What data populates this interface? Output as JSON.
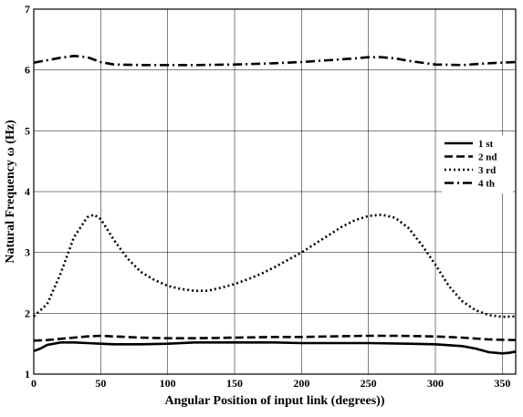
{
  "chart_data": {
    "type": "line",
    "title": "",
    "xlabel": "Angular Position of input link   (degrees))",
    "ylabel": "Natural Frequency ω    (Hz)",
    "xlim": [
      0,
      360
    ],
    "ylim": [
      1,
      7
    ],
    "xticks": [
      0,
      50,
      100,
      150,
      200,
      250,
      300,
      350
    ],
    "yticks": [
      1,
      2,
      3,
      4,
      5,
      6,
      7
    ],
    "grid": true,
    "legend_position": "right",
    "series": [
      {
        "name": "1 st",
        "style": "solid",
        "color": "#000000",
        "x": [
          0,
          5,
          10,
          20,
          30,
          40,
          50,
          60,
          80,
          100,
          120,
          150,
          180,
          200,
          220,
          250,
          280,
          300,
          320,
          330,
          340,
          350,
          355,
          360
        ],
        "y": [
          1.38,
          1.42,
          1.48,
          1.52,
          1.52,
          1.51,
          1.5,
          1.49,
          1.49,
          1.5,
          1.52,
          1.52,
          1.52,
          1.51,
          1.51,
          1.51,
          1.5,
          1.49,
          1.46,
          1.42,
          1.36,
          1.34,
          1.35,
          1.37
        ]
      },
      {
        "name": "2 nd",
        "style": "dashed",
        "color": "#000000",
        "x": [
          0,
          10,
          20,
          30,
          40,
          50,
          60,
          80,
          100,
          120,
          150,
          180,
          200,
          220,
          250,
          270,
          300,
          320,
          340,
          360
        ],
        "y": [
          1.55,
          1.56,
          1.58,
          1.6,
          1.62,
          1.63,
          1.62,
          1.6,
          1.59,
          1.59,
          1.6,
          1.61,
          1.61,
          1.62,
          1.63,
          1.63,
          1.62,
          1.6,
          1.57,
          1.56
        ]
      },
      {
        "name": "3 rd",
        "style": "dotted",
        "color": "#000000",
        "x": [
          0,
          10,
          20,
          30,
          40,
          45,
          50,
          60,
          70,
          80,
          90,
          100,
          110,
          120,
          130,
          140,
          150,
          160,
          170,
          180,
          190,
          200,
          210,
          220,
          230,
          240,
          250,
          260,
          270,
          280,
          290,
          300,
          310,
          320,
          330,
          340,
          350,
          360
        ],
        "y": [
          1.95,
          2.15,
          2.65,
          3.25,
          3.58,
          3.62,
          3.55,
          3.2,
          2.9,
          2.68,
          2.55,
          2.45,
          2.4,
          2.37,
          2.37,
          2.42,
          2.48,
          2.56,
          2.65,
          2.76,
          2.88,
          3.0,
          3.14,
          3.28,
          3.42,
          3.53,
          3.6,
          3.62,
          3.57,
          3.4,
          3.12,
          2.8,
          2.45,
          2.2,
          2.05,
          1.97,
          1.94,
          1.95
        ]
      },
      {
        "name": "4 th",
        "style": "dashdot",
        "color": "#000000",
        "x": [
          0,
          10,
          20,
          30,
          40,
          50,
          60,
          80,
          100,
          120,
          150,
          180,
          200,
          220,
          240,
          250,
          260,
          270,
          280,
          300,
          320,
          340,
          360
        ],
        "y": [
          6.12,
          6.16,
          6.2,
          6.23,
          6.21,
          6.13,
          6.09,
          6.08,
          6.08,
          6.08,
          6.09,
          6.11,
          6.13,
          6.16,
          6.19,
          6.21,
          6.21,
          6.19,
          6.15,
          6.09,
          6.08,
          6.11,
          6.13
        ]
      }
    ]
  }
}
